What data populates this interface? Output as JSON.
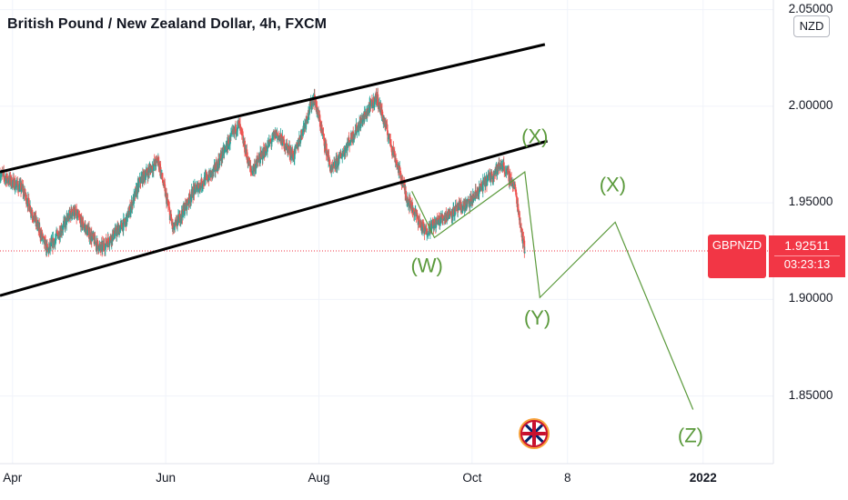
{
  "header": {
    "title": "British Pound / New Zealand Dollar, 4h, FXCM"
  },
  "price_axis": {
    "currency": "NZD"
  },
  "current": {
    "symbol": "GBPNZD",
    "price": "1.92511",
    "countdown": "03:23:13",
    "price_value": 1.92511
  },
  "colors": {
    "up": "#26a69a",
    "down": "#ef5350",
    "wave": "#5b9a3c",
    "tag": "#f23645",
    "channel": "#000000"
  },
  "chart_data": {
    "type": "candlestick",
    "title": "British Pound / New Zealand Dollar, 4h, FXCM",
    "ylim": [
      1.815,
      2.055
    ],
    "y_ticks": [
      "2.05000",
      "2.00000",
      "1.95000",
      "1.90000",
      "1.85000"
    ],
    "y_tick_values": [
      2.05,
      2.0,
      1.95,
      1.9,
      1.85
    ],
    "x_ticks": [
      "Apr",
      "Jun",
      "Aug",
      "Oct",
      "8",
      "2022"
    ],
    "x_tick_dates": [
      "2021-04-01",
      "2021-06-01",
      "2021-08-01",
      "2021-10-01",
      "2021-11-08",
      "2022-01-01"
    ],
    "xlim": [
      "2021-03-27",
      "2022-01-29"
    ],
    "price_path": [
      [
        "2021-03-27",
        1.965
      ],
      [
        "2021-04-05",
        1.957
      ],
      [
        "2021-04-15",
        1.925
      ],
      [
        "2021-04-25",
        1.946
      ],
      [
        "2021-05-06",
        1.926
      ],
      [
        "2021-05-16",
        1.94
      ],
      [
        "2021-05-22",
        1.962
      ],
      [
        "2021-05-29",
        1.972
      ],
      [
        "2021-06-04",
        1.936
      ],
      [
        "2021-06-12",
        1.956
      ],
      [
        "2021-06-20",
        1.966
      ],
      [
        "2021-06-30",
        1.991
      ],
      [
        "2021-07-05",
        1.966
      ],
      [
        "2021-07-15",
        1.986
      ],
      [
        "2021-07-22",
        1.974
      ],
      [
        "2021-07-30",
        2.005
      ],
      [
        "2021-08-06",
        1.966
      ],
      [
        "2021-08-15",
        1.986
      ],
      [
        "2021-08-24",
        2.005
      ],
      [
        "2021-08-31",
        1.975
      ],
      [
        "2021-09-05",
        1.953
      ],
      [
        "2021-09-12",
        1.935
      ],
      [
        "2021-09-20",
        1.943
      ],
      [
        "2021-09-30",
        1.95
      ],
      [
        "2021-10-07",
        1.962
      ],
      [
        "2021-10-13",
        1.97
      ],
      [
        "2021-10-18",
        1.958
      ],
      [
        "2021-10-22",
        1.925
      ]
    ],
    "channel_lines": [
      {
        "from": [
          "2021-03-27",
          1.966
        ],
        "to": [
          "2021-10-30",
          2.032
        ]
      },
      {
        "from": [
          "2021-03-27",
          1.902
        ],
        "to": [
          "2021-10-31",
          1.982
        ]
      }
    ],
    "wave_path": [
      [
        "2021-09-07",
        1.956
      ],
      [
        "2021-09-16",
        1.932
      ],
      [
        "2021-10-22",
        1.966
      ],
      [
        "2021-10-28",
        1.901
      ],
      [
        "2021-11-27",
        1.94
      ],
      [
        "2021-12-28",
        1.843
      ]
    ],
    "wave_labels": [
      {
        "text": "(X)",
        "date": "2021-10-26",
        "price": 1.981
      },
      {
        "text": "(W)",
        "date": "2021-09-13",
        "price": 1.914
      },
      {
        "text": "(Y)",
        "date": "2021-10-27",
        "price": 1.887
      },
      {
        "text": "(X)",
        "date": "2021-11-26",
        "price": 1.956
      },
      {
        "text": "(Z)",
        "date": "2021-12-27",
        "price": 1.826
      }
    ]
  }
}
